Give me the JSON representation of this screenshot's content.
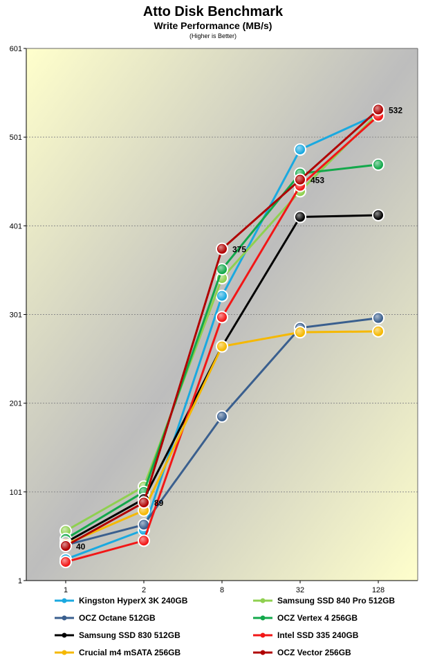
{
  "chart_data": {
    "type": "line",
    "title": "Atto Disk Benchmark",
    "subtitle": "Write Performance (MB/s)",
    "note": "(Higher is Better)",
    "x_categories": [
      "1",
      "2",
      "8",
      "32",
      "128"
    ],
    "y_ticks": [
      "1",
      "101",
      "201",
      "301",
      "401",
      "501",
      "601"
    ],
    "ylim": [
      1,
      601
    ],
    "grid": "horizontal-dashed",
    "legend_position": "bottom",
    "series": [
      {
        "name": "Kingston HyperX 3K 240GB",
        "color": "#1aa9e0",
        "values": [
          25,
          58,
          322,
          487,
          527
        ]
      },
      {
        "name": "Samsung SSD 840 Pro 512GB",
        "color": "#8fd050",
        "values": [
          57,
          107,
          342,
          440,
          528
        ]
      },
      {
        "name": "OCZ Octane 512GB",
        "color": "#3a5f8e",
        "values": [
          41,
          64,
          186,
          286,
          297
        ]
      },
      {
        "name": "OCZ Vertex 4 256GB",
        "color": "#13a84b",
        "values": [
          48,
          101,
          352,
          460,
          470
        ]
      },
      {
        "name": "Samsung SSD 830 512GB",
        "color": "#000000",
        "values": [
          44,
          93,
          265,
          411,
          413
        ]
      },
      {
        "name": "Intel SSD 335 240GB",
        "color": "#f21616",
        "values": [
          22,
          46,
          298,
          446,
          525
        ]
      },
      {
        "name": "Crucial m4 mSATA 256GB",
        "color": "#f5b800",
        "values": [
          42,
          80,
          265,
          281,
          282
        ]
      },
      {
        "name": "OCZ Vector 256GB",
        "color": "#b00000",
        "values": [
          40,
          89,
          375,
          453,
          532
        ]
      }
    ],
    "data_labels": [
      {
        "series": "OCZ Vector 256GB",
        "x": "1",
        "text": "40"
      },
      {
        "series": "OCZ Vector 256GB",
        "x": "2",
        "text": "89"
      },
      {
        "series": "OCZ Vector 256GB",
        "x": "8",
        "text": "375"
      },
      {
        "series": "OCZ Vector 256GB",
        "x": "32",
        "text": "453"
      },
      {
        "series": "OCZ Vector 256GB",
        "x": "128",
        "text": "532"
      }
    ]
  }
}
